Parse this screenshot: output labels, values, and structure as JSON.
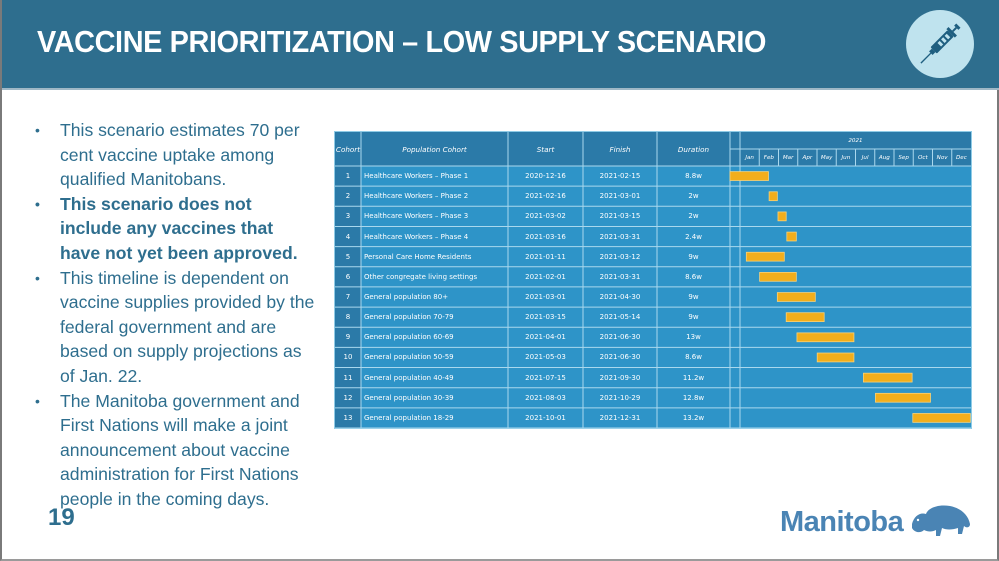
{
  "slide": {
    "title": "VACCINE PRIORITIZATION – LOW SUPPLY SCENARIO",
    "header_icon": "syringe-icon",
    "page_number": "19",
    "logo_text": "Manitoba",
    "logo_icon": "bison-icon",
    "colors": {
      "header": "#2e6e8e",
      "text": "#2e6e8e",
      "table_bg": "#2e94c8",
      "table_header_bg": "#2b7aa8",
      "bar": "#f2ae1c",
      "badge": "#bfe3ee",
      "logo": "#4a84b4"
    }
  },
  "bullets": [
    {
      "text": "This scenario estimates 70 per cent vaccine uptake among qualified Manitobans.",
      "bold": false
    },
    {
      "text": "This scenario does not include any vaccines that have not yet been approved.",
      "bold": true
    },
    {
      "text": "This timeline is dependent on vaccine supplies provided by the federal government and are based on supply projections as of Jan. 22.",
      "bold": false
    },
    {
      "text": "The Manitoba government and First Nations will make a joint announcement about vaccine administration for First Nations people in the coming days.",
      "bold": false
    }
  ],
  "chart_data": {
    "type": "gantt",
    "title": "",
    "year_label": "2021",
    "columns": [
      "Cohort",
      "Population Cohort",
      "Start",
      "Finish",
      "Duration"
    ],
    "months": [
      "Jan",
      "Feb",
      "Mar",
      "Apr",
      "May",
      "Jun",
      "Jul",
      "Aug",
      "Sep",
      "Oct",
      "Nov",
      "Dec"
    ],
    "rows": [
      {
        "cohort": "1",
        "population": "Healthcare Workers – Phase 1",
        "start": "2020-12-16",
        "finish": "2021-02-15",
        "duration": "8.8w"
      },
      {
        "cohort": "2",
        "population": "Healthcare Workers – Phase 2",
        "start": "2021-02-16",
        "finish": "2021-03-01",
        "duration": "2w"
      },
      {
        "cohort": "3",
        "population": "Healthcare Workers – Phase 3",
        "start": "2021-03-02",
        "finish": "2021-03-15",
        "duration": "2w"
      },
      {
        "cohort": "4",
        "population": "Healthcare Workers – Phase 4",
        "start": "2021-03-16",
        "finish": "2021-03-31",
        "duration": "2.4w"
      },
      {
        "cohort": "5",
        "population": "Personal Care Home Residents",
        "start": "2021-01-11",
        "finish": "2021-03-12",
        "duration": "9w"
      },
      {
        "cohort": "6",
        "population": "Other congregate living settings",
        "start": "2021-02-01",
        "finish": "2021-03-31",
        "duration": "8.6w"
      },
      {
        "cohort": "7",
        "population": "General population 80+",
        "start": "2021-03-01",
        "finish": "2021-04-30",
        "duration": "9w"
      },
      {
        "cohort": "8",
        "population": "General population 70-79",
        "start": "2021-03-15",
        "finish": "2021-05-14",
        "duration": "9w"
      },
      {
        "cohort": "9",
        "population": "General population 60-69",
        "start": "2021-04-01",
        "finish": "2021-06-30",
        "duration": "13w"
      },
      {
        "cohort": "10",
        "population": "General population 50-59",
        "start": "2021-05-03",
        "finish": "2021-06-30",
        "duration": "8.6w"
      },
      {
        "cohort": "11",
        "population": "General population 40-49",
        "start": "2021-07-15",
        "finish": "2021-09-30",
        "duration": "11.2w"
      },
      {
        "cohort": "12",
        "population": "General population 30-39",
        "start": "2021-08-03",
        "finish": "2021-10-29",
        "duration": "12.8w"
      },
      {
        "cohort": "13",
        "population": "General population 18-29",
        "start": "2021-10-01",
        "finish": "2021-12-31",
        "duration": "13.2w"
      }
    ],
    "x_range": [
      "2021-01-01",
      "2021-12-31"
    ],
    "legend": "none",
    "grid": true
  }
}
